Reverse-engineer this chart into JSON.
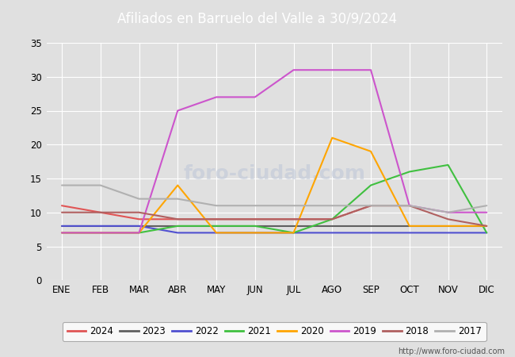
{
  "title": "Afiliados en Barruelo del Valle a 30/9/2024",
  "months": [
    "ENE",
    "FEB",
    "MAR",
    "ABR",
    "MAY",
    "JUN",
    "JUL",
    "AGO",
    "SEP",
    "OCT",
    "NOV",
    "DIC"
  ],
  "series": {
    "2024": {
      "color": "#e05555",
      "data": [
        11,
        10,
        9,
        9,
        9,
        9,
        9,
        9,
        11,
        null,
        null,
        null
      ]
    },
    "2023": {
      "color": "#606060",
      "data": [
        8,
        8,
        8,
        8,
        8,
        8,
        8,
        8,
        8,
        8,
        8,
        8
      ]
    },
    "2022": {
      "color": "#5050d0",
      "data": [
        8,
        8,
        8,
        7,
        7,
        7,
        7,
        7,
        7,
        7,
        7,
        7
      ]
    },
    "2021": {
      "color": "#40c040",
      "data": [
        7,
        7,
        7,
        8,
        8,
        8,
        7,
        9,
        14,
        16,
        17,
        7
      ]
    },
    "2020": {
      "color": "#ffa500",
      "data": [
        7,
        7,
        7,
        14,
        7,
        7,
        7,
        21,
        19,
        8,
        8,
        8
      ]
    },
    "2019": {
      "color": "#cc55cc",
      "data": [
        7,
        7,
        7,
        25,
        27,
        27,
        31,
        31,
        31,
        11,
        10,
        10
      ]
    },
    "2018": {
      "color": "#b06060",
      "data": [
        10,
        10,
        10,
        9,
        9,
        9,
        9,
        9,
        11,
        11,
        9,
        8
      ]
    },
    "2017": {
      "color": "#b0b0b0",
      "data": [
        14,
        14,
        12,
        12,
        11,
        11,
        11,
        11,
        11,
        11,
        10,
        11
      ]
    }
  },
  "ylim": [
    0,
    35
  ],
  "yticks": [
    0,
    5,
    10,
    15,
    20,
    25,
    30,
    35
  ],
  "header_bg_color": "#4472c4",
  "header_text_color": "#ffffff",
  "plot_bg_color": "#e0e0e0",
  "fig_bg_color": "#e0e0e0",
  "grid_color": "#ffffff",
  "url": "http://www.foro-ciudad.com",
  "legend_order": [
    "2024",
    "2023",
    "2022",
    "2021",
    "2020",
    "2019",
    "2018",
    "2017"
  ]
}
